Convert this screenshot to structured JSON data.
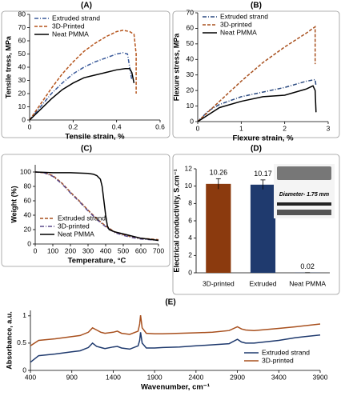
{
  "chart_data": [
    {
      "type": "line",
      "label": "(A)",
      "xlabel": "Tensile strain, %",
      "ylabel": "Tensile tress, MPa",
      "xlim": [
        0,
        0.6
      ],
      "xticks": [
        0,
        0.2,
        0.4,
        0.6
      ],
      "ylim": [
        0,
        80
      ],
      "yticks": [
        0,
        10,
        20,
        30,
        40,
        50,
        60,
        70,
        80
      ],
      "legend": "upper left",
      "series": [
        {
          "name": "Extruded strand",
          "color": "#3a5a9a",
          "dash": "dashdot",
          "x": [
            0,
            0.05,
            0.1,
            0.15,
            0.2,
            0.25,
            0.3,
            0.35,
            0.4,
            0.43,
            0.45,
            0.46,
            0.47
          ],
          "values": [
            0,
            10,
            20,
            28,
            35,
            40,
            44,
            47,
            50,
            51,
            50,
            40,
            30
          ]
        },
        {
          "name": "3D-Printed",
          "color": "#b5541c",
          "dash": "dashed",
          "x": [
            0,
            0.05,
            0.1,
            0.15,
            0.2,
            0.25,
            0.3,
            0.35,
            0.4,
            0.43,
            0.46,
            0.48,
            0.49,
            0.49
          ],
          "values": [
            0,
            12,
            24,
            35,
            44,
            52,
            58,
            63,
            67,
            68,
            67,
            65,
            50,
            20
          ]
        },
        {
          "name": "Neat PMMA",
          "color": "#000000",
          "dash": "solid",
          "x": [
            0,
            0.05,
            0.1,
            0.15,
            0.2,
            0.25,
            0.3,
            0.35,
            0.4,
            0.44,
            0.46,
            0.47,
            0.48
          ],
          "values": [
            0,
            8,
            16,
            23,
            28,
            32,
            34,
            36,
            38,
            39,
            39,
            36,
            28
          ]
        }
      ]
    },
    {
      "type": "line",
      "label": "(B)",
      "xlabel": "Flexure strain, %",
      "ylabel": "Flexure stress, MPa",
      "xlim": [
        0,
        3
      ],
      "xticks": [
        0,
        1,
        2,
        3
      ],
      "ylim": [
        0,
        70
      ],
      "yticks": [
        0,
        10,
        20,
        30,
        40,
        50,
        60,
        70
      ],
      "legend": "upper left",
      "series": [
        {
          "name": "Extruded strand",
          "color": "#2b4a80",
          "dash": "dashdot",
          "x": [
            0,
            0.25,
            0.5,
            1,
            1.5,
            2,
            2.5,
            2.7,
            2.72
          ],
          "values": [
            0,
            7,
            11,
            16,
            19,
            22,
            26,
            27,
            23
          ]
        },
        {
          "name": "3D-printed",
          "color": "#a8501e",
          "dash": "dashed",
          "x": [
            0,
            0.5,
            1,
            1.5,
            2,
            2.5,
            2.65,
            2.7,
            2.7
          ],
          "values": [
            0,
            13,
            26,
            38,
            48,
            57,
            60,
            61,
            37
          ]
        },
        {
          "name": "Neat PMMA",
          "color": "#000000",
          "dash": "solid",
          "x": [
            0,
            0.5,
            1,
            1.5,
            2,
            2.5,
            2.65,
            2.7,
            2.72
          ],
          "values": [
            0,
            9,
            13,
            16,
            17,
            21,
            23,
            20,
            6
          ]
        }
      ]
    },
    {
      "type": "line",
      "label": "(C)",
      "xlabel": "Temperature, °C",
      "ylabel": "Weight (%)",
      "xlim": [
        0,
        700
      ],
      "xticks": [
        0,
        100,
        200,
        300,
        400,
        500,
        600,
        700
      ],
      "ylim": [
        0,
        110
      ],
      "yticks": [
        0,
        20,
        40,
        60,
        80,
        100
      ],
      "legend": "lower left",
      "series": [
        {
          "name": "Extruded strand",
          "color": "#a8501e",
          "dash": "dashed",
          "x": [
            0,
            50,
            100,
            150,
            200,
            250,
            300,
            350,
            400,
            450,
            500,
            550,
            600,
            650,
            700
          ],
          "values": [
            100,
            99,
            95,
            85,
            72,
            60,
            47,
            35,
            25,
            17,
            13,
            10,
            8,
            7,
            6
          ]
        },
        {
          "name": "3D-printed",
          "color": "#5a4a8a",
          "dash": "dashdot",
          "x": [
            0,
            50,
            100,
            150,
            200,
            250,
            300,
            350,
            400,
            450,
            500,
            550,
            600,
            650,
            700
          ],
          "values": [
            100,
            99,
            94,
            84,
            71,
            59,
            46,
            34,
            24,
            16,
            12,
            9,
            7,
            6,
            5
          ]
        },
        {
          "name": "Neat PMMA",
          "color": "#000000",
          "dash": "solid",
          "x": [
            0,
            100,
            200,
            300,
            330,
            350,
            370,
            380,
            390,
            400,
            410,
            420,
            450,
            500,
            600,
            700
          ],
          "values": [
            100,
            99,
            99,
            98,
            97,
            95,
            90,
            80,
            60,
            40,
            25,
            20,
            17,
            14,
            8,
            5
          ]
        }
      ]
    },
    {
      "type": "bar",
      "label": "(D)",
      "ylabel": "Electrical conductivity, S.cm⁻¹",
      "inset_text": "Diameter- 1.75 mm",
      "categories": [
        "3D-printed",
        "Extruded",
        "Neat PMMA"
      ],
      "values": [
        10.26,
        10.17,
        0.02
      ],
      "errors": [
        0.6,
        0.55,
        0
      ],
      "colors": [
        "#8b3a0e",
        "#1f3a6e",
        "#1f3a6e"
      ],
      "ylim": [
        0,
        12
      ],
      "yticks": [
        0,
        2,
        4,
        6,
        8,
        10,
        12
      ]
    },
    {
      "type": "line",
      "label": "(E)",
      "xlabel": "Wavenumber, cm⁻¹",
      "ylabel": "Absorbance, a.u.",
      "xlim": [
        400,
        3900
      ],
      "xticks": [
        400,
        900,
        1400,
        1900,
        2400,
        2900,
        3400,
        3900
      ],
      "ylim": [
        0,
        1.1
      ],
      "yticks": [
        0,
        0.5,
        1
      ],
      "legend": "lower right",
      "series": [
        {
          "name": "Extruded strand",
          "color": "#1f3a6e",
          "dash": "solid",
          "x": [
            400,
            500,
            700,
            900,
            1000,
            1100,
            1150,
            1200,
            1250,
            1300,
            1400,
            1450,
            1500,
            1600,
            1700,
            1720,
            1730,
            1750,
            1800,
            1900,
            2000,
            2200,
            2400,
            2600,
            2800,
            2900,
            2950,
            3000,
            3100,
            3400,
            3600,
            3900
          ],
          "values": [
            0.15,
            0.27,
            0.3,
            0.34,
            0.36,
            0.42,
            0.5,
            0.44,
            0.42,
            0.4,
            0.43,
            0.44,
            0.41,
            0.39,
            0.45,
            0.55,
            0.7,
            0.5,
            0.41,
            0.41,
            0.42,
            0.43,
            0.45,
            0.47,
            0.49,
            0.57,
            0.52,
            0.5,
            0.5,
            0.55,
            0.6,
            0.65
          ]
        },
        {
          "name": "3D-printed",
          "color": "#a8501e",
          "dash": "solid",
          "x": [
            400,
            500,
            700,
            900,
            1000,
            1100,
            1150,
            1200,
            1250,
            1300,
            1400,
            1450,
            1500,
            1600,
            1700,
            1720,
            1730,
            1750,
            1800,
            1900,
            2000,
            2200,
            2400,
            2600,
            2800,
            2900,
            2950,
            3000,
            3100,
            3400,
            3600,
            3900
          ],
          "values": [
            0.45,
            0.55,
            0.58,
            0.62,
            0.64,
            0.7,
            0.78,
            0.74,
            0.7,
            0.68,
            0.7,
            0.72,
            0.68,
            0.66,
            0.72,
            0.85,
            1.01,
            0.78,
            0.68,
            0.67,
            0.67,
            0.68,
            0.69,
            0.7,
            0.73,
            0.8,
            0.76,
            0.74,
            0.73,
            0.77,
            0.8,
            0.85
          ]
        }
      ]
    }
  ]
}
